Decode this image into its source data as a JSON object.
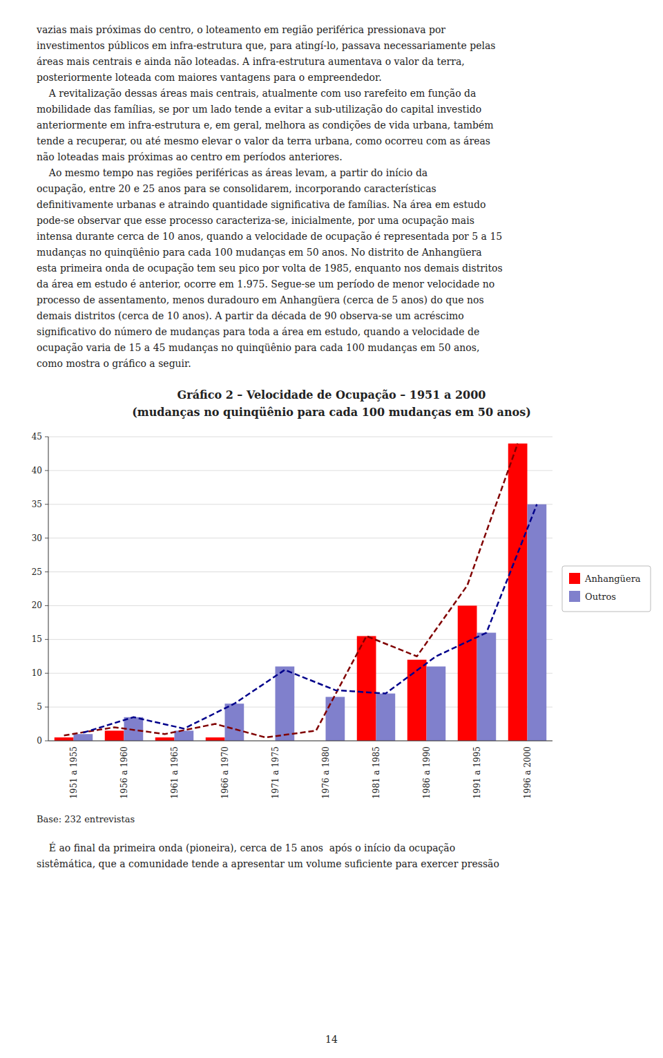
{
  "text_before": [
    "vazias mais próximas do centro, o loteamento em região periférica pressionava por",
    "investimentos públicos em infra-estrutura que, para atingí-lo, passava necessariamente pelas",
    "áreas mais centrais e ainda não loteadas. A infra-estrutura aumentava o valor da terra,",
    "posteriormente loteada com maiores vantagens para o empreendedor.",
    "    A revitalização dessas áreas mais centrais, atualmente com uso rarefeito em função da",
    "mobilidade das famílias, se por um lado tende a evitar a sub-utilização do capital investido",
    "anteriormente em infra-estrutura e, em geral, melhora as condições de vida urbana, também",
    "tende a recuperar, ou até mesmo elevar o valor da terra urbana, como ocorreu com as áreas",
    "não loteadas mais próximas ao centro em períodos anteriores.",
    "    Ao mesmo tempo nas regiões periféricas as áreas levam, a partir do início da",
    "ocupação, entre 20 e 25 anos para se consolidarem, incorporando características",
    "definitivamente urbanas e atraindo quantidade significativa de famílias. Na área em estudo",
    "pode-se observar que esse processo caracteriza-se, inicialmente, por uma ocupação mais",
    "intensa durante cerca de 10 anos, quando a velocidade de ocupação é representada por 5 a 15",
    "mudanças no quinqüênio para cada 100 mudanças em 50 anos. No distrito de Anhangüera",
    "esta primeira onda de ocupação tem seu pico por volta de 1985, enquanto nos demais distritos",
    "da área em estudo é anterior, ocorre em 1.975. Segue-se um período de menor velocidade no",
    "processo de assentamento, menos duradouro em Anhangüera (cerca de 5 anos) do que nos",
    "demais distritos (cerca de 10 anos). A partir da década de 90 observa-se um acréscimo",
    "significativo do número de mudanças para toda a área em estudo, quando a velocidade de",
    "ocupação varia de 15 a 45 mudanças no quinqüênio para cada 100 mudanças em 50 anos,",
    "como mostra o gráfico a seguir."
  ],
  "chart_data": {
    "type": "bar",
    "title": "Gráfico 2 – Velocidade de Ocupação – 1951 a 2000",
    "subtitle": "(mudanças no quinqüênio para cada 100 mudanças em 50 anos)",
    "categories": [
      "1951 a 1955",
      "1956 a 1960",
      "1961 a 1965",
      "1966 a 1970",
      "1971 a 1975",
      "1976 a 1980",
      "1981 a 1985",
      "1986 a 1990",
      "1991 a 1995",
      "1996 a 2000"
    ],
    "series": [
      {
        "name": "Anhangüera",
        "type": "bar",
        "color": "#FF0000",
        "values": [
          0.5,
          1.5,
          0.5,
          0.5,
          0.0,
          0.0,
          15.5,
          12.0,
          20.0,
          44.0
        ]
      },
      {
        "name": "Outros",
        "type": "bar",
        "color": "#8080CC",
        "values": [
          1.0,
          3.5,
          1.5,
          5.5,
          11.0,
          6.5,
          7.0,
          11.0,
          16.0,
          35.0
        ]
      },
      {
        "type": "line",
        "line_style": "dashed",
        "color": "#800000",
        "values": [
          0.8,
          2.0,
          1.0,
          2.5,
          0.5,
          1.5,
          15.5,
          12.5,
          23.0,
          44.0
        ]
      },
      {
        "type": "line",
        "line_style": "dashed",
        "color": "#00008B",
        "values": [
          1.2,
          3.5,
          1.8,
          5.5,
          10.5,
          7.5,
          7.0,
          12.5,
          16.0,
          35.0
        ]
      }
    ],
    "ylim": [
      0,
      45
    ],
    "yticks": [
      0,
      5,
      10,
      15,
      20,
      25,
      30,
      35,
      40,
      45
    ],
    "grid": true,
    "legend": "right",
    "annotations": [
      "Base: 232 entrevistas"
    ]
  },
  "text_after": [
    "    É ao final da primeira onda (pioneira), cerca de 15 anos  após o início da ocupação",
    "sistêmática, que a comunidade tende a apresentar um volume suficiente para exercer pressão"
  ],
  "page_number": "14"
}
